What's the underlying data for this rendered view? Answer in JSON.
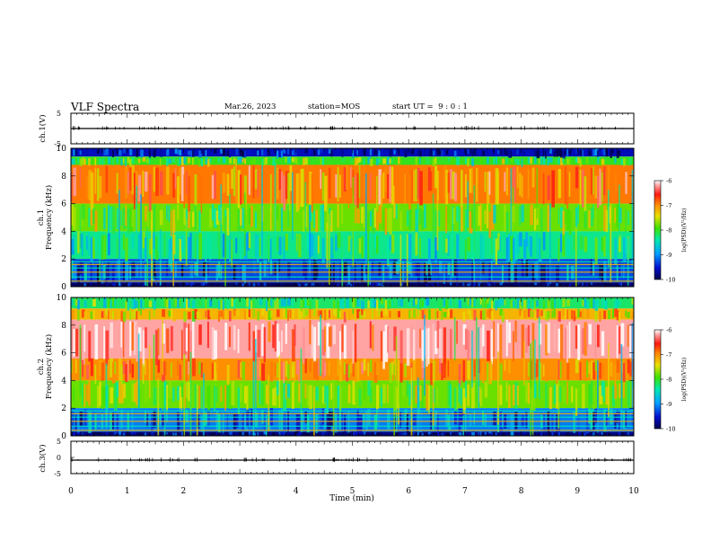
{
  "header": {
    "title": "VLF Spectra",
    "date": "Mar.26, 2023",
    "station": "station=MOS",
    "start": "start UT =  9 : 0 : 1"
  },
  "chart_data": [
    {
      "type": "line",
      "panel": "ch1-waveform",
      "ylabel": "ch.1(V)",
      "ylim": [
        -5,
        5
      ],
      "yticks": [
        "5",
        "-5"
      ],
      "x": [
        0,
        10
      ],
      "values_approx": [
        0,
        0
      ],
      "color": "#000000"
    },
    {
      "type": "heatmap",
      "panel": "ch1-spectrogram",
      "title": "ch.1",
      "ylabel": "Frequency (kHz)",
      "ylim": [
        0,
        10
      ],
      "yticks": [
        "0",
        "2",
        "4",
        "6",
        "8",
        "10"
      ],
      "xlim": [
        0,
        10
      ],
      "colorbar": {
        "label": "log(PSD)(V²/Hz)",
        "ticks": [
          "-6",
          "-7",
          "-8",
          "-9",
          "-10"
        ],
        "range": [
          -10,
          -6
        ]
      },
      "bands_approx": [
        {
          "from_khz": 9.4,
          "to_khz": 10.0,
          "log_psd": -9.6
        },
        {
          "from_khz": 8.8,
          "to_khz": 9.4,
          "log_psd": -8.0
        },
        {
          "from_khz": 6.0,
          "to_khz": 8.8,
          "log_psd": -6.9
        },
        {
          "from_khz": 4.0,
          "to_khz": 6.0,
          "log_psd": -7.8
        },
        {
          "from_khz": 2.0,
          "to_khz": 4.0,
          "log_psd": -8.3
        },
        {
          "from_khz": 0.3,
          "to_khz": 2.0,
          "log_psd": -9.3
        },
        {
          "from_khz": 0.0,
          "to_khz": 0.3,
          "log_psd": -9.9
        }
      ]
    },
    {
      "type": "heatmap",
      "panel": "ch2-spectrogram",
      "title": "ch.2",
      "ylabel": "Frequency (kHz)",
      "ylim": [
        0,
        10
      ],
      "yticks": [
        "0",
        "2",
        "4",
        "6",
        "8",
        "10"
      ],
      "xlim": [
        0,
        10
      ],
      "colorbar": {
        "label": "log(PSD)(V²/Hz)",
        "ticks": [
          "-6",
          "-7",
          "-8",
          "-9",
          "-10"
        ],
        "range": [
          -10,
          -6
        ]
      },
      "bands_approx": [
        {
          "from_khz": 9.2,
          "to_khz": 10.0,
          "log_psd": -8.2
        },
        {
          "from_khz": 8.4,
          "to_khz": 9.2,
          "log_psd": -7.2
        },
        {
          "from_khz": 5.6,
          "to_khz": 8.4,
          "log_psd": -6.2
        },
        {
          "from_khz": 4.0,
          "to_khz": 5.6,
          "log_psd": -7.0
        },
        {
          "from_khz": 2.0,
          "to_khz": 4.0,
          "log_psd": -7.8
        },
        {
          "from_khz": 0.3,
          "to_khz": 2.0,
          "log_psd": -9.1
        },
        {
          "from_khz": 0.0,
          "to_khz": 0.3,
          "log_psd": -9.8
        }
      ]
    },
    {
      "type": "line",
      "panel": "ch3-waveform",
      "ylabel": "ch.3(V)",
      "ylim": [
        -5,
        5
      ],
      "yticks": [
        "5",
        "0",
        "-5"
      ],
      "x": [
        0,
        10
      ],
      "values_approx": [
        0,
        0
      ],
      "color": "#000000"
    }
  ],
  "x_axis": {
    "label": "Time (min)",
    "range": [
      0,
      10
    ],
    "ticks": [
      "0",
      "1",
      "2",
      "3",
      "4",
      "5",
      "6",
      "7",
      "8",
      "9",
      "10"
    ]
  }
}
